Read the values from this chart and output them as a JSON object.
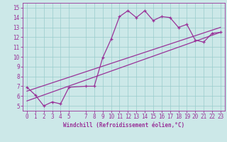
{
  "xlabel": "Windchill (Refroidissement éolien,°C)",
  "ylabel": "",
  "bg_color": "#cce8e8",
  "line_color": "#993399",
  "grid_color": "#99cccc",
  "xlim": [
    -0.5,
    23.5
  ],
  "ylim": [
    4.5,
    15.5
  ],
  "xticks": [
    0,
    1,
    2,
    3,
    4,
    5,
    7,
    8,
    9,
    10,
    11,
    12,
    13,
    14,
    15,
    16,
    17,
    18,
    19,
    20,
    21,
    22,
    23
  ],
  "yticks": [
    5,
    6,
    7,
    8,
    9,
    10,
    11,
    12,
    13,
    14,
    15
  ],
  "series1_x": [
    0,
    1,
    2,
    3,
    4,
    5,
    7,
    8,
    9,
    10,
    11,
    12,
    13,
    14,
    15,
    16,
    17,
    18,
    19,
    20,
    21,
    22,
    23
  ],
  "series1_y": [
    6.9,
    6.1,
    5.0,
    5.4,
    5.2,
    6.9,
    7.0,
    7.0,
    9.9,
    11.8,
    14.1,
    14.7,
    14.0,
    14.7,
    13.7,
    14.1,
    14.0,
    13.0,
    13.3,
    11.7,
    11.5,
    12.4,
    12.5
  ],
  "series2_x": [
    0,
    23
  ],
  "series2_y": [
    5.5,
    12.5
  ],
  "series3_x": [
    0,
    23
  ],
  "series3_y": [
    6.5,
    13.0
  ],
  "tick_fontsize": 5.5,
  "xlabel_fontsize": 5.5,
  "lw": 0.9
}
